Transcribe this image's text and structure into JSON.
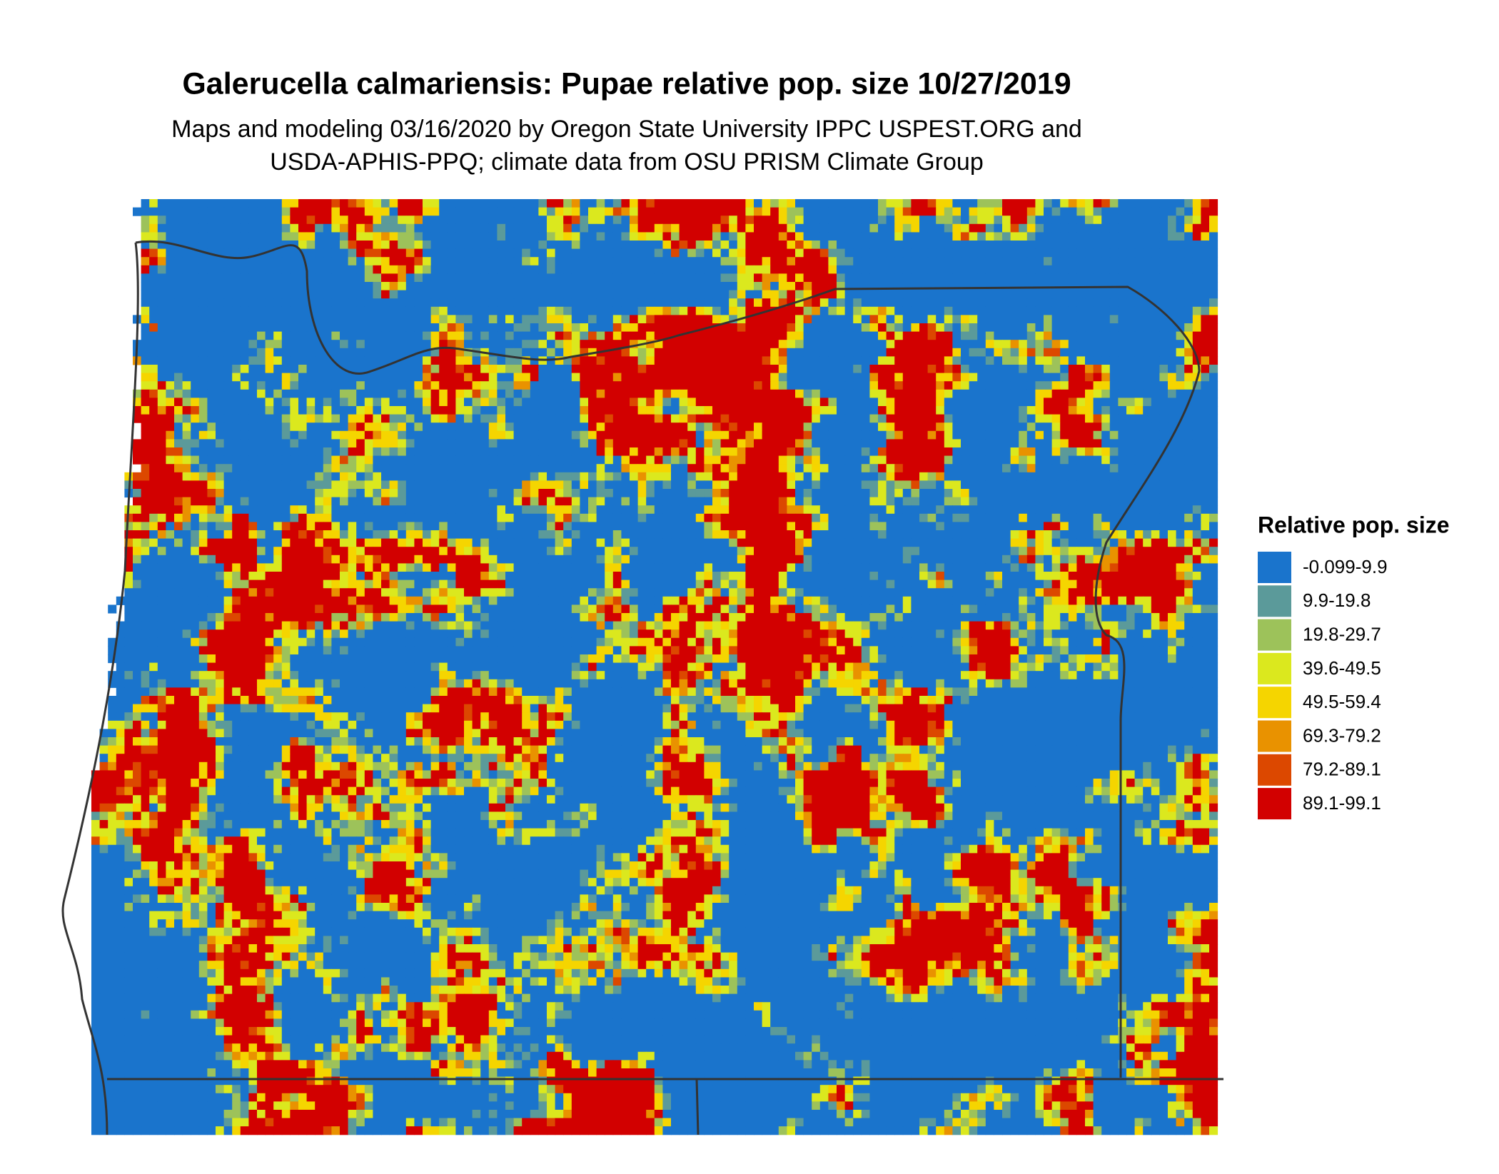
{
  "title": "Galerucella calmariensis: Pupae relative pop. size 10/27/2019",
  "subtitle": [
    "Maps and modeling 03/16/2020 by Oregon State University IPPC USPEST.ORG and",
    "USDA-APHIS-PPQ; climate data from OSU PRISM Climate Group"
  ],
  "legend": {
    "title": "Relative pop. size",
    "items": [
      {
        "label": "-0.099-9.9",
        "color": "#1a74cc"
      },
      {
        "label": "9.9-19.8",
        "color": "#5b9a9a"
      },
      {
        "label": "19.8-29.7",
        "color": "#9dc25a"
      },
      {
        "label": "39.6-49.5",
        "color": "#dbe81e"
      },
      {
        "label": "49.5-59.4",
        "color": "#f5d500"
      },
      {
        "label": "69.3-79.2",
        "color": "#e99200"
      },
      {
        "label": "79.2-89.1",
        "color": "#dc4800"
      },
      {
        "label": "89.1-99.1",
        "color": "#d20000"
      }
    ]
  }
}
